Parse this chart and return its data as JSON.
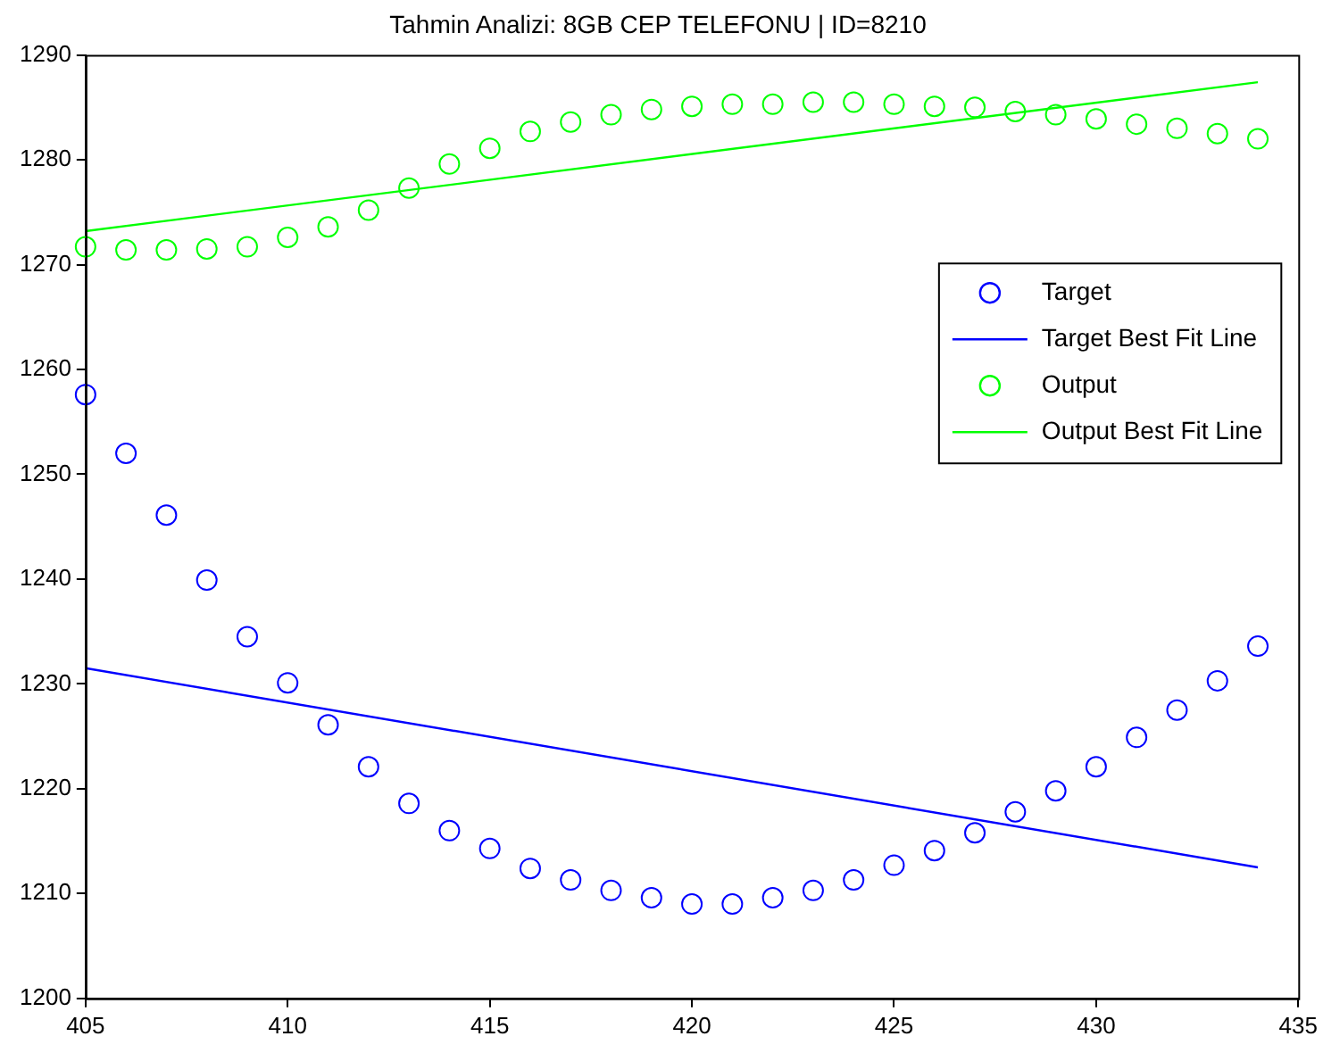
{
  "chart_data": {
    "type": "scatter",
    "title": "Tahmin Analizi: 8GB CEP TELEFONU | ID=8210",
    "xlim": [
      405,
      435
    ],
    "xticks": [
      405,
      410,
      415,
      420,
      425,
      430,
      435
    ],
    "ylim": [
      1200,
      1290
    ],
    "yticks": [
      1200,
      1210,
      1220,
      1230,
      1240,
      1250,
      1260,
      1270,
      1280,
      1290
    ],
    "grid": false,
    "legend": "top right",
    "series": [
      {
        "name": "Target",
        "type": "scatter",
        "marker": "circle",
        "color": "#0000ff",
        "x": [
          405,
          406,
          407,
          408,
          409,
          410,
          411,
          412,
          413,
          414,
          415,
          416,
          417,
          418,
          419,
          420,
          421,
          422,
          423,
          424,
          425,
          426,
          427,
          428,
          429,
          430,
          431,
          432,
          433,
          434
        ],
        "values": [
          1257.6,
          1252.0,
          1246.1,
          1239.9,
          1234.5,
          1230.1,
          1226.1,
          1222.1,
          1218.6,
          1216.0,
          1214.3,
          1212.4,
          1211.3,
          1210.3,
          1209.6,
          1209.0,
          1209.0,
          1209.6,
          1210.3,
          1211.3,
          1212.7,
          1214.1,
          1215.8,
          1217.8,
          1219.8,
          1222.1,
          1224.9,
          1227.5,
          1230.3,
          1233.6
        ]
      },
      {
        "name": "Target Best Fit Line",
        "type": "line",
        "marker": "none",
        "line_style": "solid",
        "color": "#0000ff",
        "x": [
          405,
          434
        ],
        "values": [
          1231.5,
          1212.5
        ]
      },
      {
        "name": "Output",
        "type": "scatter",
        "marker": "circle",
        "color": "#00ff00",
        "x": [
          405,
          406,
          407,
          408,
          409,
          410,
          411,
          412,
          413,
          414,
          415,
          416,
          417,
          418,
          419,
          420,
          421,
          422,
          423,
          424,
          425,
          426,
          427,
          428,
          429,
          430,
          431,
          432,
          433,
          434
        ],
        "values": [
          1271.7,
          1271.4,
          1271.4,
          1271.5,
          1271.7,
          1272.6,
          1273.6,
          1275.2,
          1277.3,
          1279.6,
          1281.1,
          1282.7,
          1283.6,
          1284.3,
          1284.8,
          1285.1,
          1285.3,
          1285.3,
          1285.5,
          1285.5,
          1285.3,
          1285.1,
          1285.0,
          1284.6,
          1284.3,
          1283.9,
          1283.4,
          1283.0,
          1282.5,
          1282.0
        ]
      },
      {
        "name": "Output Best Fit Line",
        "type": "line",
        "marker": "none",
        "line_style": "solid",
        "color": "#00ff00",
        "x": [
          405,
          434
        ],
        "values": [
          1273.2,
          1287.4
        ]
      }
    ]
  }
}
